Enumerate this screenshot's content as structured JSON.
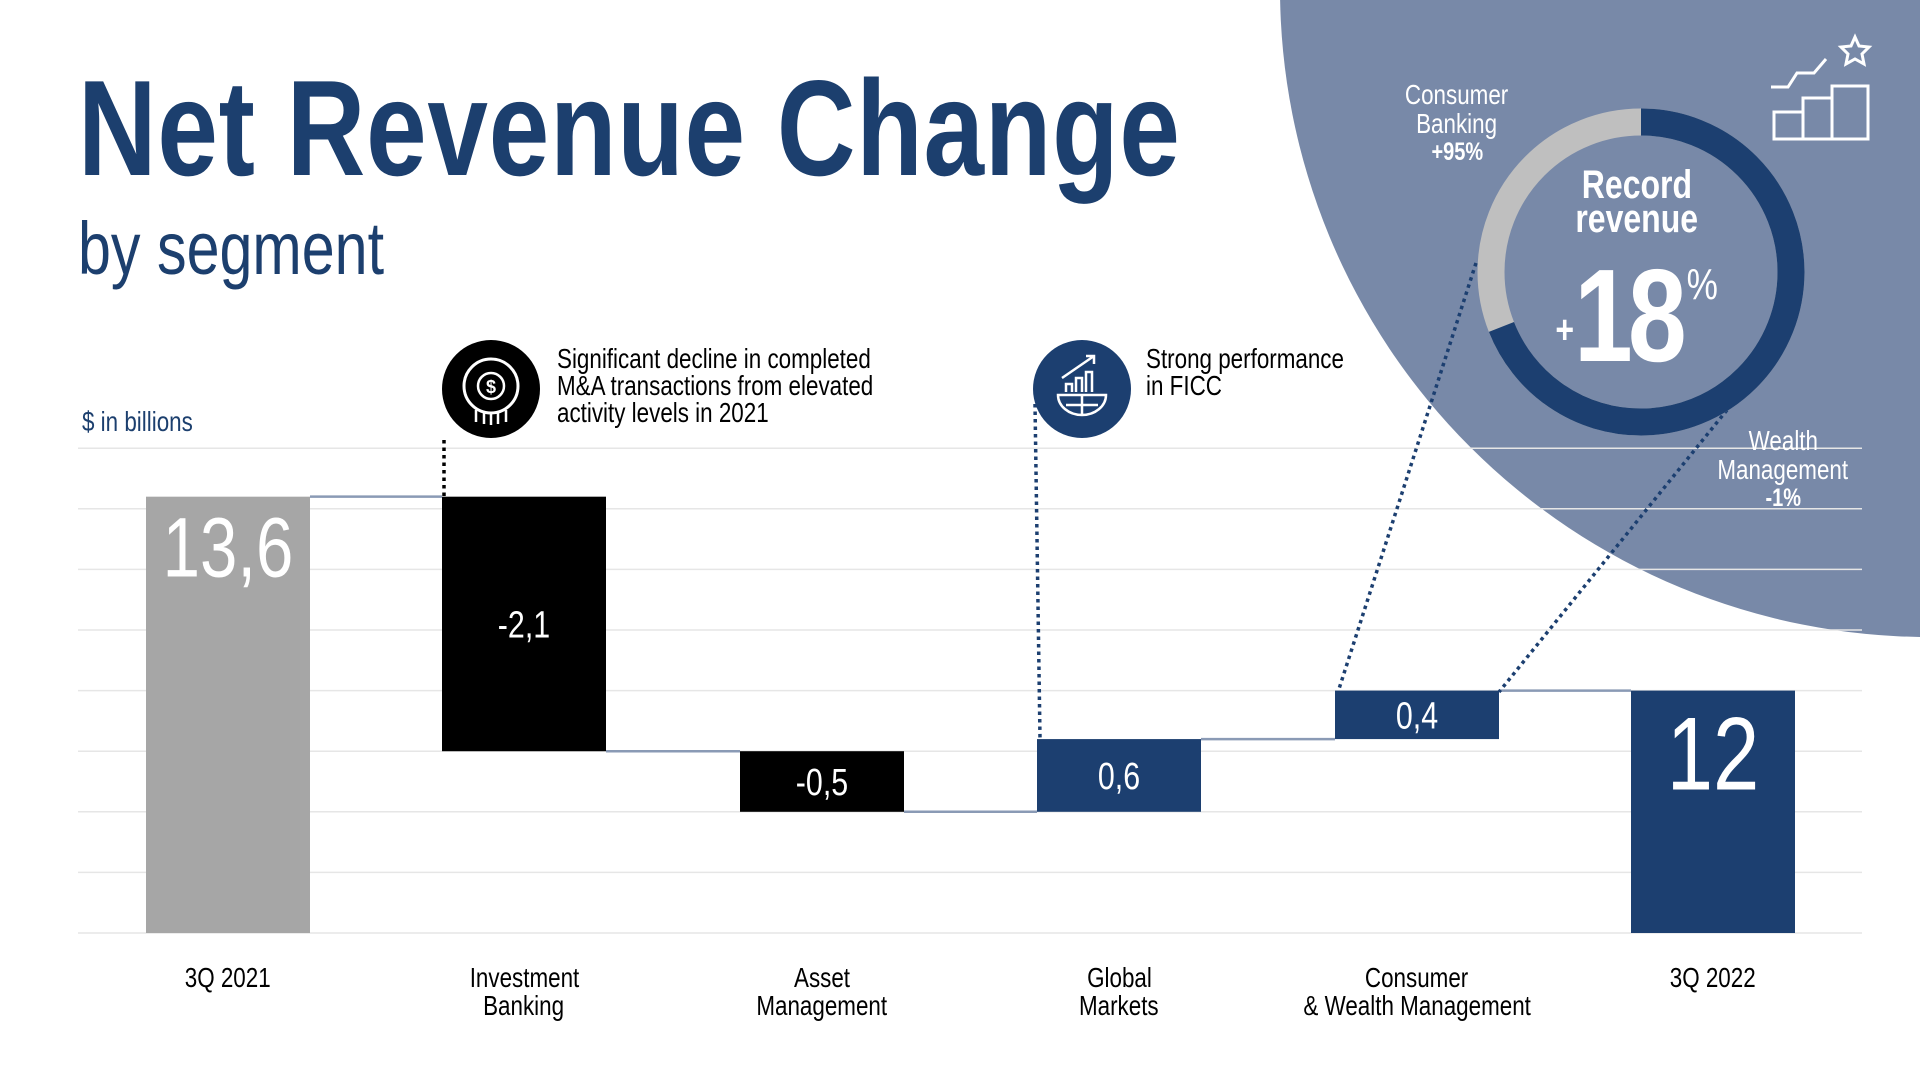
{
  "title": "Net Revenue Change",
  "subtitle": "by segment",
  "unit_label": "$ in billions",
  "annotations": [
    {
      "lines": [
        "Significant decline in completed",
        "M&A transactions from elevated",
        "activity levels in 2021"
      ],
      "icon": "dollar-globe-icon"
    },
    {
      "lines": [
        "Strong performance",
        "in FICC"
      ],
      "icon": "growth-chart-globe-icon"
    }
  ],
  "highlight": {
    "headline": [
      "Record",
      "revenue"
    ],
    "value_prefix": "+",
    "value": "18",
    "value_suffix": "%",
    "icon": "rising-bars-star-icon",
    "segments": [
      {
        "name": [
          "Consumer",
          "Banking"
        ],
        "change": "+95%",
        "color": "#bfbfbf",
        "share": 0.31
      },
      {
        "name": [
          "Wealth",
          "Management"
        ],
        "change": "-1%",
        "color": "#1c3f70",
        "share": 0.69
      }
    ]
  },
  "colors": {
    "title": "#1c3f6e",
    "total_start": "#a6a6a6",
    "negative": "#000000",
    "positive": "#1c3f70",
    "total_end": "#1c3f70",
    "panel": "#7889a8",
    "connector": "#8a9ab5"
  },
  "chart_data": {
    "type": "bar",
    "subtype": "waterfall",
    "categories": [
      "3Q 2021",
      "Investment Banking",
      "Asset Management",
      "Global Markets",
      "Consumer & Wealth Management",
      "3Q 2022"
    ],
    "category_lines": [
      [
        "3Q 2021"
      ],
      [
        "Investment",
        "Banking"
      ],
      [
        "Asset",
        "Management"
      ],
      [
        "Global",
        "Markets"
      ],
      [
        "Consumer",
        "& Wealth Management"
      ],
      [
        "3Q 2022"
      ]
    ],
    "values": [
      13.6,
      -2.1,
      -0.5,
      0.6,
      0.4,
      12
    ],
    "data_labels": [
      "13,6",
      "-2,1",
      "-0,5",
      "0,6",
      "0,4",
      "12"
    ],
    "kinds": [
      "total",
      "delta",
      "delta",
      "delta",
      "delta",
      "total"
    ],
    "ylabel": "$ in billions",
    "ylim": [
      10,
      14
    ],
    "grid": true,
    "grid_step": 0.5
  }
}
